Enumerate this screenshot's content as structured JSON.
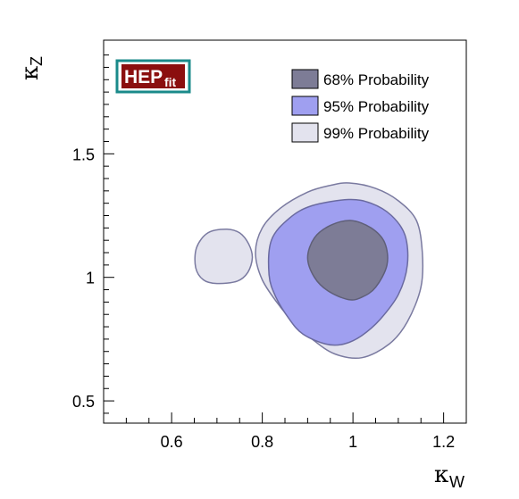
{
  "chart_data": {
    "type": "contour",
    "xlabel": "κ",
    "xlabel_sub": "W",
    "ylabel": "κ",
    "ylabel_sub": "Z",
    "xlim": [
      0.45,
      1.25
    ],
    "ylim": [
      0.41,
      1.96
    ],
    "x_ticks": [
      {
        "value": 0.6,
        "label": "0.6"
      },
      {
        "value": 0.8,
        "label": "0.8"
      },
      {
        "value": 1.0,
        "label": "1"
      },
      {
        "value": 1.2,
        "label": "1.2"
      }
    ],
    "y_ticks": [
      {
        "value": 0.5,
        "label": "0.5"
      },
      {
        "value": 1.0,
        "label": "1"
      },
      {
        "value": 1.5,
        "label": "1.5"
      }
    ],
    "grid": false,
    "legend_position": "top-right",
    "logo": {
      "main": "HEP",
      "sub": "fit",
      "bg_color": "#8b0f0f",
      "border_color": "#1a8a8a"
    },
    "series": [
      {
        "name": "99% Probability",
        "color": "#e3e3ee",
        "edge": "#7a7aa0",
        "regions": [
          [
            [
              0.992,
              1.382
            ],
            [
              1.05,
              1.36
            ],
            [
              1.1,
              1.31
            ],
            [
              1.14,
              1.23
            ],
            [
              1.153,
              1.1
            ],
            [
              1.15,
              0.96
            ],
            [
              1.12,
              0.82
            ],
            [
              1.08,
              0.73
            ],
            [
              1.02,
              0.675
            ],
            [
              0.96,
              0.69
            ],
            [
              0.91,
              0.75
            ],
            [
              0.87,
              0.82
            ],
            [
              0.84,
              0.88
            ],
            [
              0.8,
              0.99
            ],
            [
              0.785,
              1.1
            ],
            [
              0.8,
              1.2
            ],
            [
              0.84,
              1.28
            ],
            [
              0.9,
              1.345
            ],
            [
              0.95,
              1.372
            ]
          ],
          [
            [
              0.72,
              1.195
            ],
            [
              0.75,
              1.18
            ],
            [
              0.77,
              1.135
            ],
            [
              0.778,
              1.08
            ],
            [
              0.768,
              1.02
            ],
            [
              0.745,
              0.985
            ],
            [
              0.7,
              0.975
            ],
            [
              0.67,
              0.99
            ],
            [
              0.653,
              1.04
            ],
            [
              0.655,
              1.12
            ],
            [
              0.68,
              1.18
            ]
          ]
        ]
      },
      {
        "name": "95% Probability",
        "color": "#9f9ff0",
        "edge": "#6a6aa0",
        "regions": [
          [
            [
              0.99,
              1.315
            ],
            [
              1.04,
              1.3
            ],
            [
              1.085,
              1.25
            ],
            [
              1.115,
              1.17
            ],
            [
              1.12,
              1.05
            ],
            [
              1.1,
              0.93
            ],
            [
              1.06,
              0.83
            ],
            [
              1.02,
              0.765
            ],
            [
              0.98,
              0.73
            ],
            [
              0.94,
              0.73
            ],
            [
              0.89,
              0.77
            ],
            [
              0.86,
              0.83
            ],
            [
              0.83,
              0.92
            ],
            [
              0.815,
              1.01
            ],
            [
              0.82,
              1.15
            ],
            [
              0.86,
              1.24
            ],
            [
              0.91,
              1.29
            ]
          ]
        ]
      },
      {
        "name": "68% Probability",
        "color": "#7d7c96",
        "edge": "#5f5f78",
        "regions": [
          [
            [
              0.995,
              1.23
            ],
            [
              1.04,
              1.2
            ],
            [
              1.07,
              1.14
            ],
            [
              1.075,
              1.05
            ],
            [
              1.05,
              0.96
            ],
            [
              1.02,
              0.92
            ],
            [
              0.99,
              0.91
            ],
            [
              0.945,
              0.945
            ],
            [
              0.915,
              1.0
            ],
            [
              0.9,
              1.08
            ],
            [
              0.915,
              1.16
            ],
            [
              0.95,
              1.21
            ]
          ]
        ]
      }
    ]
  }
}
